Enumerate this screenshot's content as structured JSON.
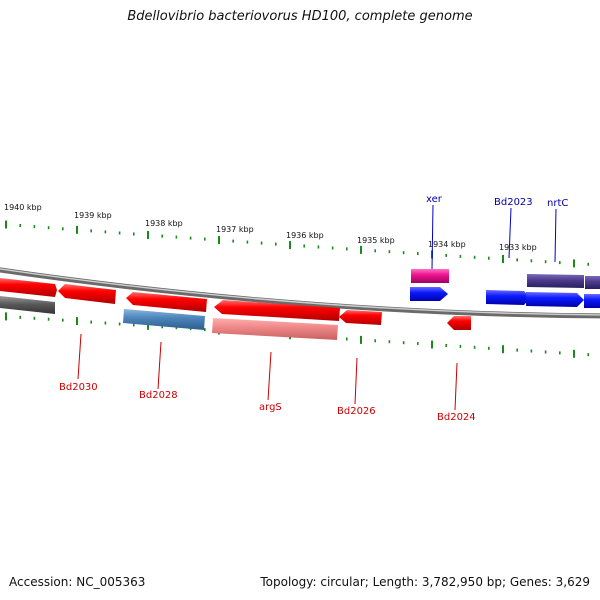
{
  "title": "Bdellovibrio bacteriovorus HD100, complete genome",
  "footer": {
    "accession": "Accession: NC_005363",
    "stats": "Topology: circular; Length: 3,782,950 bp; Genes: 3,629"
  },
  "colors": {
    "backbone": "#8c8c8c",
    "tick": "#1a8a1a",
    "label_red": "#cc0000",
    "label_blue": "#0000aa"
  },
  "tick_labels": [
    "1940 kbp",
    "1939 kbp",
    "1938 kbp",
    "1937 kbp",
    "1936 kbp",
    "1935 kbp",
    "1934 kbp",
    "1933 kbp"
  ],
  "gene_labels": [
    {
      "text": "xer",
      "strand": "forward"
    },
    {
      "text": "Bd2023",
      "strand": "forward"
    },
    {
      "text": "nrtC",
      "strand": "forward"
    },
    {
      "text": "Bd2030",
      "strand": "reverse"
    },
    {
      "text": "Bd2028",
      "strand": "reverse"
    },
    {
      "text": "argS",
      "strand": "reverse"
    },
    {
      "text": "Bd2026",
      "strand": "reverse"
    },
    {
      "text": "Bd2024",
      "strand": "reverse"
    }
  ]
}
